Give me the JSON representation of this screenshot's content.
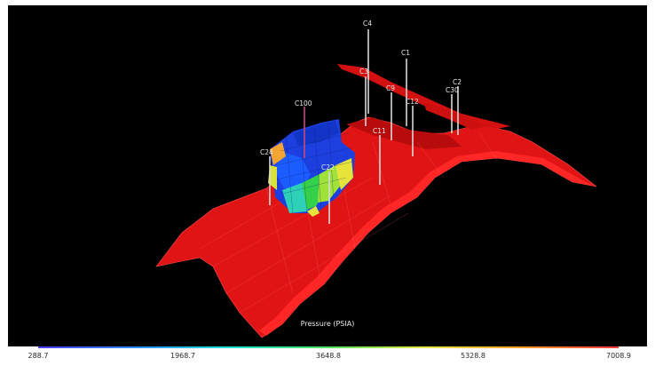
{
  "colorbar": {
    "title": "Pressure (PSIA)",
    "ticks": [
      "288.7",
      "1968.7",
      "3648.8",
      "5328.8",
      "7008.9"
    ],
    "colors": [
      "#4b3cff",
      "#2d8cff",
      "#21e3d8",
      "#4de35c",
      "#e7e94b",
      "#ff9d2a",
      "#ff3b3b"
    ]
  },
  "wells": [
    {
      "id": "C4"
    },
    {
      "id": "C1"
    },
    {
      "id": "C3"
    },
    {
      "id": "C2"
    },
    {
      "id": "C9"
    },
    {
      "id": "C30"
    },
    {
      "id": "C12"
    },
    {
      "id": "C100"
    },
    {
      "id": "C11"
    },
    {
      "id": "C24"
    },
    {
      "id": "C22"
    }
  ],
  "surface_color": "#ff1a1a"
}
